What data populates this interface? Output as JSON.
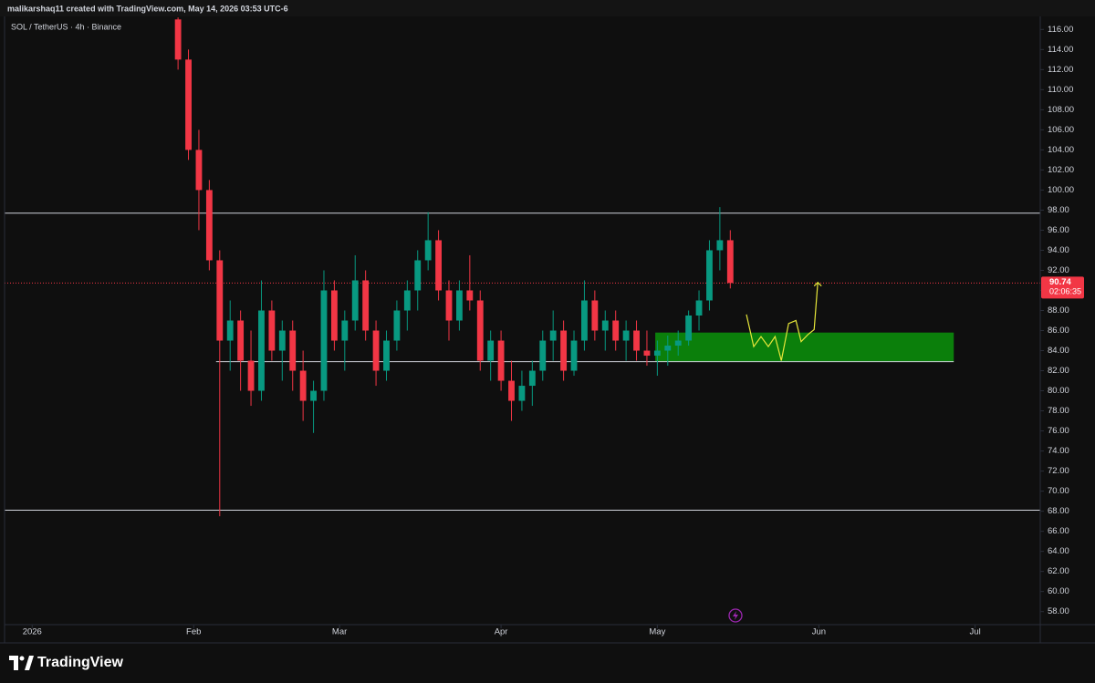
{
  "header": "malikarshaq11 created with TradingView.com, May 14, 2026 03:53 UTC-6",
  "brand": "TradingView",
  "chart_data": {
    "type": "candlestick",
    "title": "SOL / TetherUS · 4h · Binance",
    "xlim": [
      -5.3,
      193.5
    ],
    "xticks": [
      {
        "value": 0,
        "label": "2026"
      },
      {
        "value": 31,
        "label": "Feb"
      },
      {
        "value": 59,
        "label": "Mar"
      },
      {
        "value": 90,
        "label": "Apr"
      },
      {
        "value": 120,
        "label": "May"
      },
      {
        "value": 151,
        "label": "Jun"
      },
      {
        "value": 181,
        "label": "Jul"
      }
    ],
    "ylim": [
      56.7,
      117.3
    ],
    "yticks": [
      {
        "value": 58,
        "label": "58.00"
      },
      {
        "value": 60,
        "label": "60.00"
      },
      {
        "value": 62,
        "label": "62.00"
      },
      {
        "value": 64,
        "label": "64.00"
      },
      {
        "value": 66,
        "label": "66.00"
      },
      {
        "value": 68,
        "label": "68.00"
      },
      {
        "value": 70,
        "label": "70.00"
      },
      {
        "value": 72,
        "label": "72.00"
      },
      {
        "value": 74,
        "label": "74.00"
      },
      {
        "value": 76,
        "label": "76.00"
      },
      {
        "value": 78,
        "label": "78.00"
      },
      {
        "value": 80,
        "label": "80.00"
      },
      {
        "value": 82,
        "label": "82.00"
      },
      {
        "value": 84,
        "label": "84.00"
      },
      {
        "value": 86,
        "label": "86.00"
      },
      {
        "value": 88,
        "label": "88.00"
      },
      {
        "value": 90,
        "label": "90.00"
      },
      {
        "value": 92,
        "label": "92.00"
      },
      {
        "value": 94,
        "label": "94.00"
      },
      {
        "value": 96,
        "label": "96.00"
      },
      {
        "value": 98,
        "label": "98.00"
      },
      {
        "value": 100,
        "label": "100.00"
      },
      {
        "value": 102,
        "label": "102.00"
      },
      {
        "value": 104,
        "label": "104.00"
      },
      {
        "value": 106,
        "label": "106.00"
      },
      {
        "value": 108,
        "label": "108.00"
      },
      {
        "value": 110,
        "label": "110.00"
      },
      {
        "value": 112,
        "label": "112.00"
      },
      {
        "value": 114,
        "label": "114.00"
      },
      {
        "value": 116,
        "label": "116.00"
      }
    ],
    "up_color": "#089981",
    "down_color": "#f23645",
    "x": [
      28,
      30,
      32,
      34,
      36,
      38,
      40,
      42,
      44,
      46,
      48,
      50,
      52,
      54,
      56,
      58,
      60,
      62,
      64,
      66,
      68,
      70,
      72,
      74,
      76,
      78,
      80,
      82,
      84,
      86,
      88,
      90,
      92,
      94,
      96,
      98,
      100,
      102,
      104,
      106,
      108,
      110,
      112,
      114,
      116,
      118,
      120,
      122,
      124,
      126,
      128,
      130,
      132,
      134
    ],
    "open": [
      117,
      113,
      104,
      100,
      93,
      85,
      87,
      83,
      80,
      88,
      84,
      86,
      82,
      79,
      80,
      90,
      85,
      87,
      91,
      86,
      82,
      85,
      88,
      90,
      93,
      95,
      90,
      87,
      90,
      89,
      83,
      85,
      81,
      79,
      80.5,
      82,
      85,
      86,
      82,
      85,
      89,
      86,
      87,
      85,
      86,
      84,
      83.5,
      84,
      84.5,
      85,
      87.5,
      89,
      94,
      95
    ],
    "high": [
      117.2,
      114,
      106,
      101,
      94,
      89,
      88,
      86,
      91,
      89,
      87,
      87,
      84,
      81,
      92,
      91,
      88,
      93.5,
      92,
      87,
      86,
      89,
      91,
      94,
      97.8,
      96,
      91,
      91,
      93.5,
      90,
      86,
      86,
      83,
      82,
      83,
      86,
      88,
      87,
      86,
      91,
      90,
      88,
      88,
      87,
      87,
      86,
      85,
      85.5,
      86,
      88,
      90,
      95,
      98.3,
      96
    ],
    "low": [
      112,
      103,
      96,
      92,
      67.5,
      82,
      80,
      78.5,
      79,
      83,
      81,
      80,
      77,
      75.8,
      79,
      84,
      82,
      86,
      85,
      80.5,
      81,
      84,
      86,
      88,
      92,
      89,
      85,
      86,
      88,
      82,
      81,
      80,
      77,
      78,
      78.5,
      81,
      83,
      81,
      81.5,
      84,
      85,
      84,
      84,
      83,
      83,
      82.5,
      81.5,
      82.5,
      83.5,
      84.5,
      86,
      88,
      92,
      90.2
    ],
    "close": [
      113,
      104,
      100,
      93,
      85,
      87,
      83,
      80,
      88,
      84,
      86,
      82,
      79,
      80,
      90,
      85,
      87,
      91,
      86,
      82,
      85,
      88,
      90,
      93,
      95,
      90,
      87,
      90,
      89,
      83,
      85,
      81,
      79,
      80.5,
      82,
      85,
      86,
      82,
      85,
      89,
      86,
      87,
      85,
      86,
      84,
      83.5,
      84,
      84.5,
      85,
      87.5,
      89,
      94,
      95,
      90.74
    ],
    "levels": [
      {
        "y": 97.7,
        "color": "#d1d4dc"
      },
      {
        "y": 68.1,
        "color": "#d1d4dc"
      }
    ],
    "segments": [
      {
        "x": [
          35.3,
          176.9
        ],
        "y": 82.9,
        "color": "#d1d4dc"
      }
    ],
    "zone": {
      "x": [
        119.6,
        176.9
      ],
      "y": [
        82.9,
        85.8
      ],
      "color": "#0b7f0b"
    },
    "projection": {
      "color": "#e8e83a",
      "x": [
        137.1,
        138.5,
        139.9,
        141.3,
        142.6,
        143.8,
        145.2,
        146.6,
        147.6,
        148.9,
        150.1,
        150.8
      ],
      "y": [
        87.6,
        84.4,
        85.4,
        84.4,
        85.4,
        83.0,
        86.7,
        87.0,
        84.9,
        85.6,
        86.1,
        90.8
      ]
    },
    "last_price": 90.74,
    "countdown": "02:06:35",
    "last_color": "#f23645"
  }
}
